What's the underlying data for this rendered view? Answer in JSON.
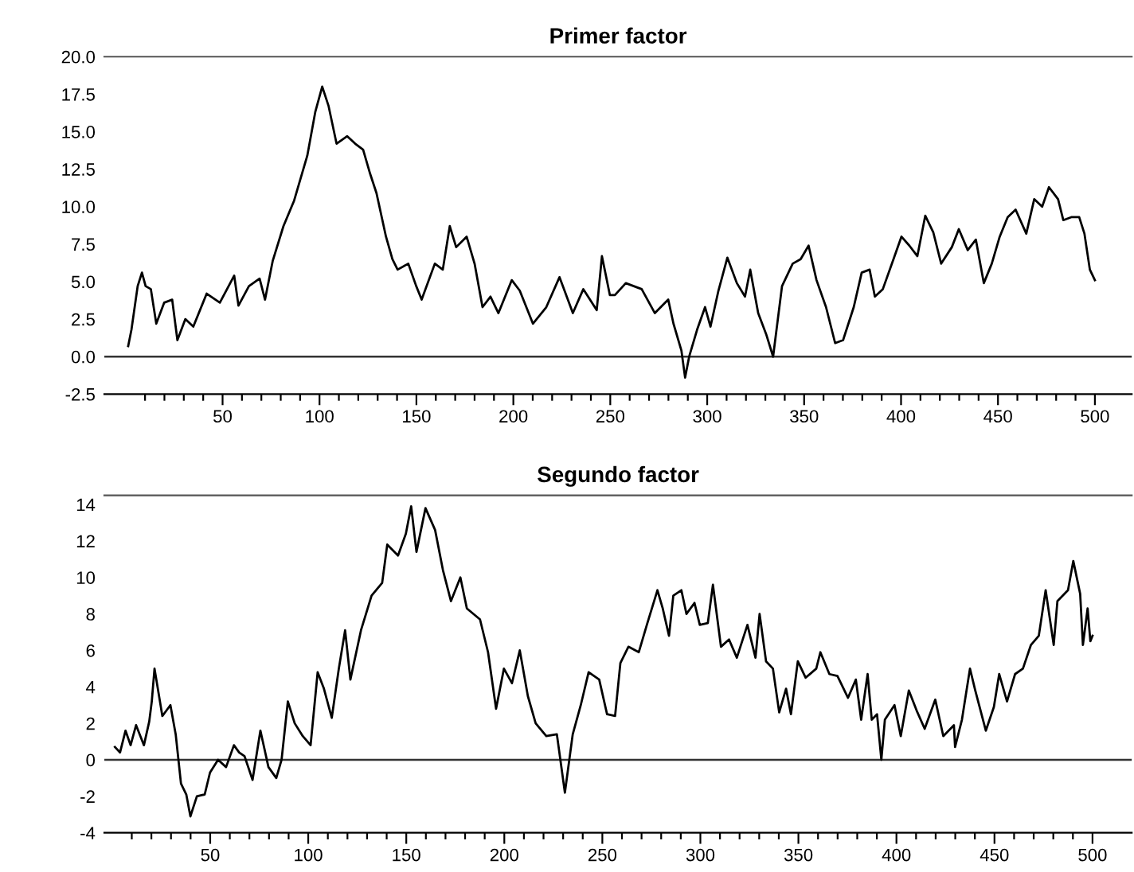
{
  "chart_data": [
    {
      "type": "line",
      "title": "Primer factor",
      "xlim": [
        -11,
        519
      ],
      "ylim": [
        -2.5,
        20
      ],
      "xticks": [
        {
          "value": 10,
          "label": null
        },
        {
          "value": 20,
          "label": null
        },
        {
          "value": 30,
          "label": null
        },
        {
          "value": 40,
          "label": null
        },
        50,
        {
          "value": 60,
          "label": null
        },
        {
          "value": 70,
          "label": null
        },
        {
          "value": 80,
          "label": null
        },
        {
          "value": 90,
          "label": null
        },
        100,
        {
          "value": 110,
          "label": null
        },
        {
          "value": 120,
          "label": null
        },
        {
          "value": 130,
          "label": null
        },
        {
          "value": 140,
          "label": null
        },
        150,
        {
          "value": 160,
          "label": null
        },
        {
          "value": 170,
          "label": null
        },
        {
          "value": 180,
          "label": null
        },
        {
          "value": 190,
          "label": null
        },
        200,
        {
          "value": 210,
          "label": null
        },
        {
          "value": 220,
          "label": null
        },
        {
          "value": 230,
          "label": null
        },
        {
          "value": 240,
          "label": null
        },
        250,
        {
          "value": 260,
          "label": null
        },
        {
          "value": 270,
          "label": null
        },
        {
          "value": 280,
          "label": null
        },
        {
          "value": 290,
          "label": null
        },
        300,
        {
          "value": 310,
          "label": null
        },
        {
          "value": 320,
          "label": null
        },
        {
          "value": 330,
          "label": null
        },
        {
          "value": 340,
          "label": null
        },
        350,
        {
          "value": 360,
          "label": null
        },
        {
          "value": 370,
          "label": null
        },
        {
          "value": 380,
          "label": null
        },
        {
          "value": 390,
          "label": null
        },
        400,
        {
          "value": 410,
          "label": null
        },
        {
          "value": 420,
          "label": null
        },
        {
          "value": 430,
          "label": null
        },
        {
          "value": 440,
          "label": null
        },
        450,
        {
          "value": 460,
          "label": null
        },
        {
          "value": 470,
          "label": null
        },
        {
          "value": 480,
          "label": null
        },
        {
          "value": 490,
          "label": null
        },
        500
      ],
      "yticks": [
        -2.5,
        {
          "value": 0,
          "label": "0.0"
        },
        2.5,
        {
          "value": 5,
          "label": "5.0"
        },
        7.5,
        {
          "value": 10,
          "label": "10.0"
        },
        12.5,
        {
          "value": 15,
          "label": "15.0"
        },
        17.5,
        {
          "value": 20,
          "label": "20.0"
        }
      ],
      "grid": false,
      "legend": false,
      "marker": "none",
      "line_style": "solid",
      "ref_lines": [
        {
          "axis": "y",
          "value": 0,
          "color": "#333333"
        }
      ],
      "series": [
        {
          "color": "#000000",
          "x": [
            1.3,
            3,
            6.2,
            8.4,
            10.3,
            13.0,
            15.8,
            19.9,
            24.0,
            26.7,
            30.8,
            34.9,
            41.8,
            48.6,
            56.0,
            58.2,
            63.6,
            69.1,
            71.9,
            75.9,
            81.4,
            86.9,
            93.7,
            97.8,
            101.4,
            104.7,
            108.8,
            114.3,
            118.4,
            122.5,
            126.1,
            129.4,
            134.3,
            137.6,
            140.3,
            145.8,
            149.9,
            152.7,
            159.5,
            163.6,
            167.2,
            170.5,
            175.9,
            180.0,
            184.1,
            188.2,
            192.3,
            199.2,
            203.3,
            210.1,
            217.0,
            223.8,
            230.7,
            236.1,
            243.0,
            245.7,
            249.8,
            252.4,
            258.0,
            266.2,
            273.0,
            279.9,
            282.6,
            286.7,
            288.6,
            290.7,
            294.8,
            298.9,
            301.7,
            305.8,
            310.4,
            315.3,
            319.5,
            322.2,
            326.3,
            330.4,
            334.0,
            338.6,
            344.1,
            348.2,
            352.3,
            356.4,
            361.3,
            366.0,
            370.1,
            375.6,
            379.7,
            383.8,
            386.5,
            390.6,
            396.1,
            400.2,
            404.3,
            408.4,
            412.5,
            416.6,
            420.7,
            426.2,
            429.8,
            434.4,
            438.6,
            442.7,
            446.8,
            450.9,
            455.0,
            459.1,
            464.6,
            468.7,
            472.8,
            476.3,
            481.0,
            483.7,
            487.8,
            491.9,
            494.6,
            497.4,
            500
          ],
          "values": [
            0.7,
            1.8,
            4.7,
            5.6,
            4.7,
            4.5,
            2.2,
            3.6,
            3.8,
            1.1,
            2.5,
            2.0,
            4.2,
            3.6,
            5.4,
            3.4,
            4.7,
            5.2,
            3.8,
            6.4,
            8.7,
            10.4,
            13.4,
            16.3,
            18.0,
            16.7,
            14.2,
            14.7,
            14.2,
            13.8,
            12.2,
            10.9,
            8.0,
            6.5,
            5.8,
            6.2,
            4.7,
            3.8,
            6.2,
            5.8,
            8.7,
            7.3,
            8.0,
            6.2,
            3.3,
            4.0,
            2.9,
            5.1,
            4.4,
            2.2,
            3.3,
            5.3,
            2.9,
            4.5,
            3.1,
            6.7,
            4.1,
            4.1,
            4.9,
            4.5,
            2.9,
            3.8,
            2.2,
            0.4,
            -1.4,
            0,
            1.8,
            3.3,
            2.0,
            4.4,
            6.6,
            4.9,
            4.0,
            5.8,
            2.9,
            1.5,
            0,
            4.7,
            6.2,
            6.5,
            7.4,
            5.1,
            3.3,
            0.9,
            1.1,
            3.3,
            5.6,
            5.8,
            4.0,
            4.5,
            6.5,
            8.0,
            7.4,
            6.7,
            9.4,
            8.3,
            6.2,
            7.3,
            8.5,
            7.1,
            7.8,
            4.9,
            6.2,
            8.0,
            9.3,
            9.8,
            8.2,
            10.5,
            10.0,
            11.3,
            10.5,
            9.1,
            9.3,
            9.3,
            8.2,
            5.8,
            5.1
          ]
        }
      ]
    },
    {
      "type": "line",
      "title": "Segundo factor",
      "xlim": [
        -4,
        520
      ],
      "ylim": [
        -4,
        14.5
      ],
      "xticks": [
        {
          "value": 10,
          "label": null
        },
        {
          "value": 20,
          "label": null
        },
        {
          "value": 30,
          "label": null
        },
        {
          "value": 40,
          "label": null
        },
        50,
        {
          "value": 60,
          "label": null
        },
        {
          "value": 70,
          "label": null
        },
        {
          "value": 80,
          "label": null
        },
        {
          "value": 90,
          "label": null
        },
        100,
        {
          "value": 110,
          "label": null
        },
        {
          "value": 120,
          "label": null
        },
        {
          "value": 130,
          "label": null
        },
        {
          "value": 140,
          "label": null
        },
        150,
        {
          "value": 160,
          "label": null
        },
        {
          "value": 170,
          "label": null
        },
        {
          "value": 180,
          "label": null
        },
        {
          "value": 190,
          "label": null
        },
        200,
        {
          "value": 210,
          "label": null
        },
        {
          "value": 220,
          "label": null
        },
        {
          "value": 230,
          "label": null
        },
        {
          "value": 240,
          "label": null
        },
        250,
        {
          "value": 260,
          "label": null
        },
        {
          "value": 270,
          "label": null
        },
        {
          "value": 280,
          "label": null
        },
        {
          "value": 290,
          "label": null
        },
        300,
        {
          "value": 310,
          "label": null
        },
        {
          "value": 320,
          "label": null
        },
        {
          "value": 330,
          "label": null
        },
        {
          "value": 340,
          "label": null
        },
        350,
        {
          "value": 360,
          "label": null
        },
        {
          "value": 370,
          "label": null
        },
        {
          "value": 380,
          "label": null
        },
        {
          "value": 390,
          "label": null
        },
        400,
        {
          "value": 410,
          "label": null
        },
        {
          "value": 420,
          "label": null
        },
        {
          "value": 430,
          "label": null
        },
        {
          "value": 440,
          "label": null
        },
        450,
        {
          "value": 460,
          "label": null
        },
        {
          "value": 470,
          "label": null
        },
        {
          "value": 480,
          "label": null
        },
        {
          "value": 490,
          "label": null
        },
        500
      ],
      "yticks": [
        -4,
        -2,
        0,
        2,
        4,
        6,
        8,
        10,
        12,
        14
      ],
      "grid": false,
      "legend": false,
      "marker": "none",
      "line_style": "solid",
      "ref_lines": [
        {
          "axis": "y",
          "value": 0,
          "color": "#333333"
        }
      ],
      "series": [
        {
          "color": "#000000",
          "x": [
            1.4,
            4.0,
            6.8,
            9.4,
            12.2,
            16.2,
            18.9,
            20.2,
            21.6,
            25.6,
            29.7,
            32.4,
            35.1,
            37.8,
            39.9,
            43.2,
            47.2,
            49.9,
            54.0,
            58.1,
            62.1,
            64.8,
            67.5,
            71.6,
            75.6,
            79.7,
            83.7,
            86.4,
            89.6,
            93.1,
            97.2,
            101.2,
            104.8,
            108.0,
            112.0,
            115.6,
            118.8,
            121.5,
            126.9,
            132.3,
            137.7,
            140.3,
            145.8,
            149.8,
            152.5,
            155.2,
            159.8,
            164.7,
            168.7,
            172.8,
            177.6,
            180.9,
            187.6,
            191.7,
            195.8,
            199.8,
            203.9,
            207.9,
            212.0,
            216.0,
            221.4,
            226.8,
            230.9,
            234.9,
            239.0,
            243.0,
            248.4,
            252.4,
            256.5,
            259.2,
            263.3,
            268.6,
            272.7,
            278.1,
            280.8,
            284.0,
            286.2,
            290.3,
            292.9,
            297.0,
            299.7,
            303.8,
            306.4,
            310.5,
            314.6,
            318.6,
            324.0,
            328.1,
            330.2,
            333.5,
            337.0,
            340.2,
            343.7,
            346.2,
            349.7,
            353.7,
            359.1,
            361.2,
            365.8,
            369.9,
            375.3,
            379.3,
            382.0,
            385.3,
            387.4,
            390.1,
            392.3,
            394.1,
            399.0,
            402.2,
            406.3,
            410.3,
            414.4,
            419.8,
            423.9,
            429.3,
            429.9,
            433.4,
            437.5,
            440.2,
            445.6,
            449.7,
            452.4,
            456.4,
            460.5,
            464.5,
            468.6,
            472.6,
            476.1,
            480.2,
            482.1,
            487.5,
            490.2,
            493.7,
            495.1,
            497.5,
            498.9,
            500
          ],
          "values": [
            0.7,
            0.4,
            1.6,
            0.8,
            1.9,
            0.8,
            2.1,
            3.2,
            5.0,
            2.4,
            3.0,
            1.4,
            -1.3,
            -1.9,
            -3.1,
            -2.0,
            -1.9,
            -0.7,
            0.0,
            -0.4,
            0.8,
            0.4,
            0.2,
            -1.1,
            1.6,
            -0.4,
            -1.0,
            0.0,
            3.2,
            2.0,
            1.3,
            0.8,
            4.8,
            3.9,
            2.3,
            5.0,
            7.1,
            4.4,
            7.1,
            9.0,
            9.7,
            11.8,
            11.2,
            12.4,
            13.9,
            11.4,
            13.8,
            12.6,
            10.4,
            8.7,
            10.0,
            8.3,
            7.7,
            5.9,
            2.8,
            5.0,
            4.2,
            6.0,
            3.5,
            2.0,
            1.3,
            1.4,
            -1.8,
            1.4,
            3.0,
            4.8,
            4.4,
            2.5,
            2.4,
            5.3,
            6.2,
            5.9,
            7.4,
            9.3,
            8.3,
            6.8,
            9.0,
            9.3,
            8.0,
            8.6,
            7.4,
            7.5,
            9.6,
            6.2,
            6.6,
            5.6,
            7.4,
            5.6,
            8.0,
            5.4,
            5.0,
            2.6,
            3.9,
            2.5,
            5.4,
            4.5,
            5.0,
            5.9,
            4.7,
            4.6,
            3.4,
            4.4,
            2.2,
            4.7,
            2.2,
            2.5,
            0.0,
            2.2,
            3.0,
            1.3,
            3.8,
            2.7,
            1.7,
            3.3,
            1.3,
            1.9,
            0.7,
            2.2,
            5.0,
            3.8,
            1.6,
            2.9,
            4.7,
            3.2,
            4.7,
            5.0,
            6.3,
            6.8,
            9.3,
            6.3,
            8.7,
            9.3,
            10.9,
            9.1,
            6.3,
            8.3,
            6.5,
            6.8
          ]
        }
      ]
    }
  ]
}
